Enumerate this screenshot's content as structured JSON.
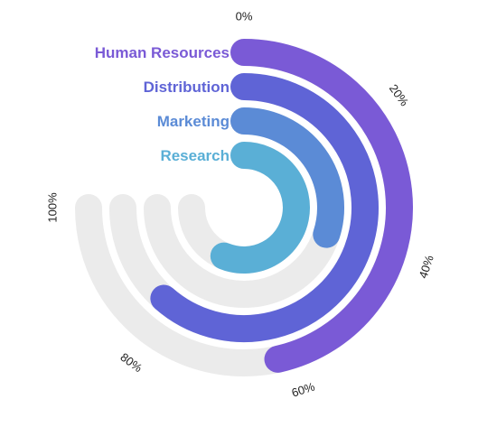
{
  "chart_data": {
    "type": "radialBar",
    "title": "",
    "max": 100,
    "ticks": [
      "0%",
      "20%",
      "40%",
      "60%",
      "80%",
      "100%"
    ],
    "tick_values": [
      0,
      20,
      40,
      60,
      80,
      100
    ],
    "categories": [
      "Human Resources",
      "Distribution",
      "Marketing",
      "Research"
    ],
    "values": [
      62,
      82,
      40,
      75
    ],
    "colors": [
      "#7a5ad6",
      "#5f64d6",
      "#5b8bd6",
      "#5aafd6"
    ],
    "track_color": "#ebebeb",
    "legend": "labels-left-of-bars"
  }
}
